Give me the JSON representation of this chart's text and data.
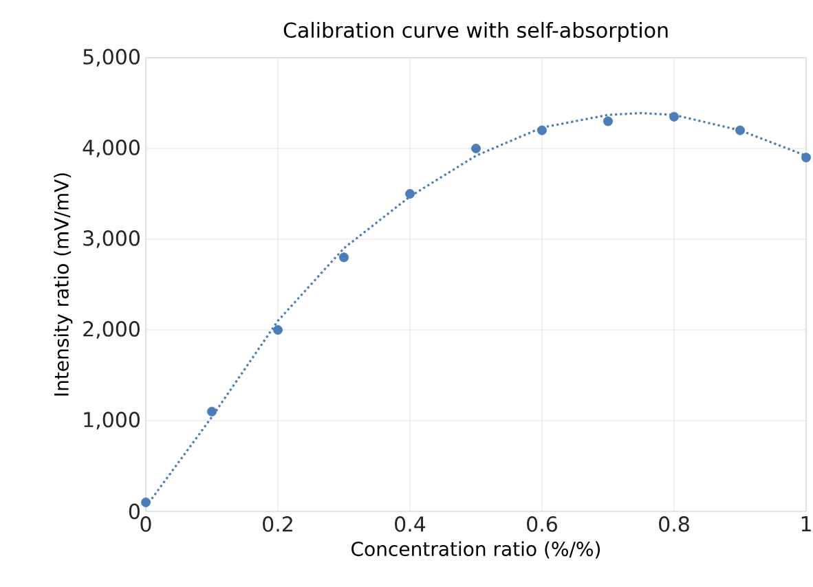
{
  "chart_data": {
    "type": "scatter",
    "title": "Calibration curve with self-absorption",
    "xlabel": "Concentration ratio (%/%)",
    "ylabel": "Intensity ratio (mV/mV)",
    "series": [
      {
        "color": "#4a7ebb",
        "marker": "circle",
        "x": [
          0,
          0.1,
          0.2,
          0.3,
          0.4,
          0.5,
          0.6,
          0.7,
          0.8,
          0.9,
          1.0
        ],
        "values": [
          100,
          1100,
          2000,
          2800,
          3500,
          4000,
          4200,
          4300,
          4350,
          4200,
          3900
        ]
      },
      {
        "type": "line",
        "color": "#4a7ebb",
        "line_style": "dotted",
        "marker": "none",
        "x": [
          0,
          0.1,
          0.2,
          0.3,
          0.4,
          0.5,
          0.6,
          0.7,
          0.75,
          0.8,
          0.9,
          1.0
        ],
        "values": [
          50,
          1040,
          2100,
          2900,
          3470,
          3920,
          4230,
          4370,
          4390,
          4370,
          4200,
          3920
        ]
      }
    ],
    "xlim": [
      0,
      1
    ],
    "ylim": [
      0,
      5000
    ],
    "xticks": [
      0,
      0.2,
      0.4,
      0.6,
      0.8,
      1
    ],
    "yticks": [
      0,
      {
        "value": 1000,
        "label": "1,000"
      },
      {
        "value": 2000,
        "label": "2,000"
      },
      {
        "value": 3000,
        "label": "3,000"
      },
      {
        "value": 4000,
        "label": "4,000"
      },
      {
        "value": 5000,
        "label": "5,000"
      }
    ],
    "grid": true
  }
}
